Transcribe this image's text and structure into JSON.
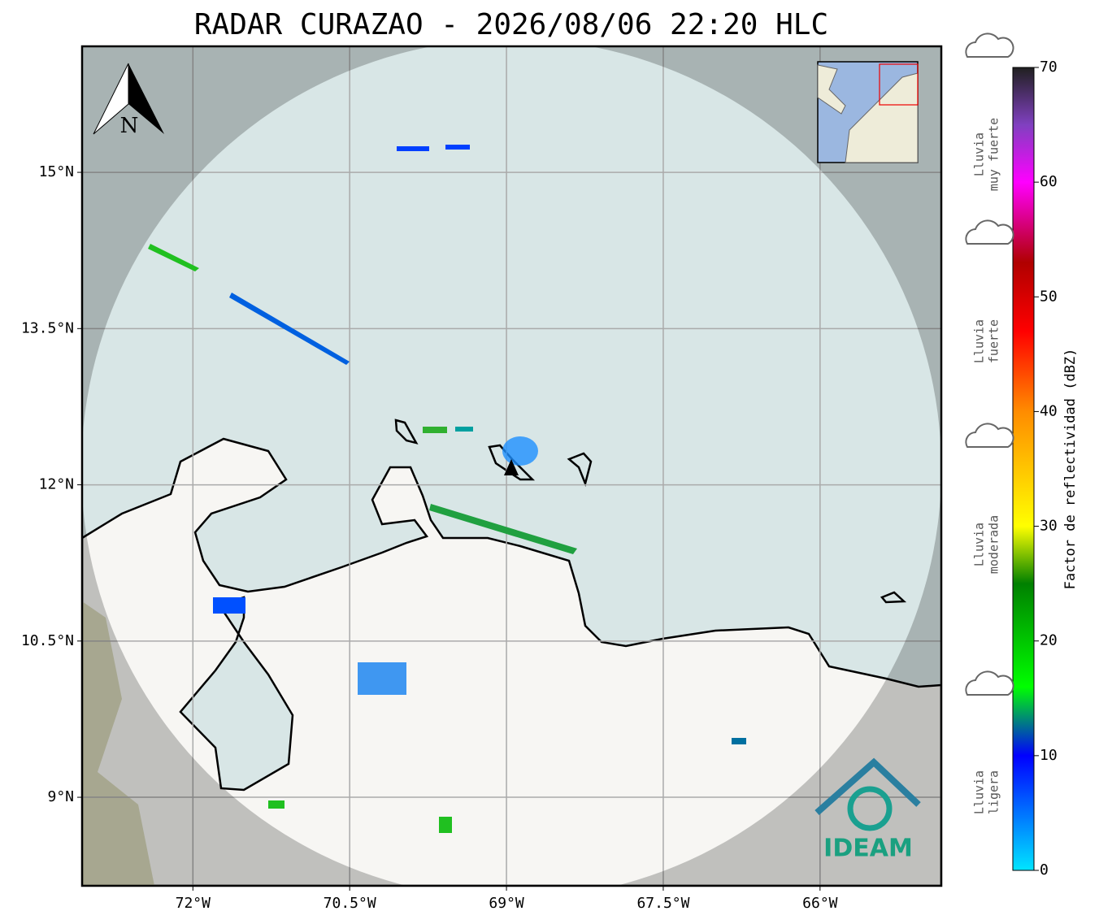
{
  "header": {
    "title": "RADAR CURAZAO - 2026/08/06 22:20 HLC"
  },
  "map": {
    "lonlim": [
      -73.06,
      -64.84
    ],
    "latlim": [
      8.15,
      16.21
    ],
    "lon_ticks": [
      {
        "value": -72,
        "label": "72°W"
      },
      {
        "value": -70.5,
        "label": "70.5°W"
      },
      {
        "value": -69,
        "label": "69°W"
      },
      {
        "value": -67.5,
        "label": "67.5°W"
      },
      {
        "value": -66,
        "label": "66°W"
      }
    ],
    "lat_ticks": [
      {
        "value": 15,
        "label": "15°N"
      },
      {
        "value": 13.5,
        "label": "13.5°N"
      },
      {
        "value": 12,
        "label": "12°N"
      },
      {
        "value": 10.5,
        "label": "10.5°N"
      },
      {
        "value": 9,
        "label": "9°N"
      }
    ],
    "grid": true,
    "north": "N",
    "logo": "IDEAM"
  },
  "colorbar": {
    "label": "Factor de reflectividad (dBZ)",
    "lim": [
      0,
      70
    ],
    "ticks": [
      0,
      10,
      20,
      30,
      40,
      50,
      60,
      70
    ],
    "stops": [
      [
        0,
        "#00e5ff"
      ],
      [
        10,
        "#0000ff"
      ],
      [
        16,
        "#00ff00"
      ],
      [
        25,
        "#008000"
      ],
      [
        30,
        "#ffff00"
      ],
      [
        40,
        "#ff8c00"
      ],
      [
        47,
        "#ff0000"
      ],
      [
        53,
        "#b00000"
      ],
      [
        60,
        "#ff00ff"
      ],
      [
        65,
        "#8040c0"
      ],
      [
        70,
        "#202020"
      ]
    ]
  },
  "categories": [
    {
      "lines": [
        "Lluvia",
        "muy fuerte"
      ]
    },
    {
      "lines": [
        "Lluvia",
        "fuerte"
      ]
    },
    {
      "lines": [
        "Lluvia",
        "moderada"
      ]
    },
    {
      "lines": [
        "Lluvia",
        "ligera"
      ]
    }
  ]
}
